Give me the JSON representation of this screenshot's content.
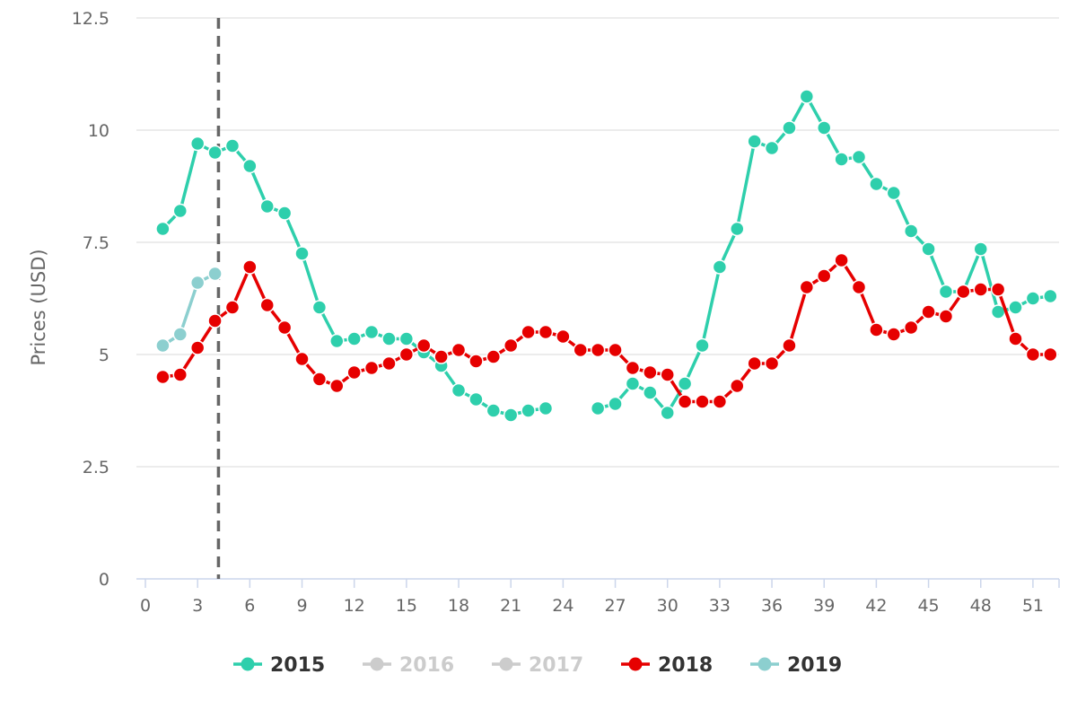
{
  "chart_data": {
    "type": "line",
    "xlabel": "",
    "ylabel": "Prices (USD)",
    "xlim": [
      0,
      52.5
    ],
    "ylim": [
      0,
      12.5
    ],
    "x_ticks": [
      0,
      3,
      6,
      9,
      12,
      15,
      18,
      21,
      24,
      27,
      30,
      33,
      36,
      39,
      42,
      45,
      48,
      51
    ],
    "y_ticks": [
      0,
      2.5,
      5,
      7.5,
      10,
      12.5
    ],
    "y_tick_labels": [
      "0",
      "2.5",
      "5",
      "7.5",
      "10",
      "12.5"
    ],
    "grid": true,
    "legend": "bottom-center",
    "reference_line_x": 4.2,
    "series": [
      {
        "name": "2015",
        "color": "#2ecfac",
        "visible": true,
        "x": [
          1,
          2,
          3,
          4,
          5,
          6,
          7,
          8,
          9,
          10,
          11,
          12,
          13,
          14,
          15,
          16,
          17,
          18,
          19,
          20,
          21,
          22,
          23,
          24,
          25,
          26,
          27,
          28,
          29,
          30,
          31,
          32,
          33,
          34,
          35,
          36,
          37,
          38,
          39,
          40,
          41,
          42,
          43,
          44,
          45,
          46,
          47,
          48,
          49,
          50,
          51,
          52
        ],
        "values": [
          7.8,
          8.2,
          9.7,
          9.5,
          9.65,
          9.2,
          8.3,
          8.15,
          7.25,
          6.05,
          5.3,
          5.35,
          5.5,
          5.35,
          5.35,
          5.05,
          4.75,
          4.2,
          4.0,
          3.75,
          3.65,
          3.75,
          3.8,
          null,
          null,
          3.8,
          3.9,
          4.35,
          4.15,
          3.7,
          4.35,
          5.2,
          6.95,
          7.8,
          9.75,
          9.6,
          10.05,
          10.75,
          10.05,
          9.35,
          9.4,
          8.8,
          8.6,
          7.75,
          7.35,
          6.4,
          6.4,
          7.35,
          5.95,
          6.05,
          6.25,
          6.3
        ]
      },
      {
        "name": "2016",
        "color": "#cccccc",
        "visible": false,
        "x": [],
        "values": []
      },
      {
        "name": "2017",
        "color": "#cccccc",
        "visible": false,
        "x": [],
        "values": []
      },
      {
        "name": "2018",
        "color": "#e60000",
        "visible": true,
        "x": [
          1,
          2,
          3,
          4,
          5,
          6,
          7,
          8,
          9,
          10,
          11,
          12,
          13,
          14,
          15,
          16,
          17,
          18,
          19,
          20,
          21,
          22,
          23,
          24,
          25,
          26,
          27,
          28,
          29,
          30,
          31,
          32,
          33,
          34,
          35,
          36,
          37,
          38,
          39,
          40,
          41,
          42,
          43,
          44,
          45,
          46,
          47,
          48,
          49,
          50,
          51,
          52
        ],
        "values": [
          4.5,
          4.55,
          5.15,
          5.75,
          6.05,
          6.95,
          6.1,
          5.6,
          4.9,
          4.45,
          4.3,
          4.6,
          4.7,
          4.8,
          5.0,
          5.2,
          4.95,
          5.1,
          4.85,
          4.95,
          5.2,
          5.5,
          5.5,
          5.4,
          5.1,
          5.1,
          5.1,
          4.7,
          4.6,
          4.55,
          3.95,
          3.95,
          3.95,
          4.3,
          4.8,
          4.8,
          5.2,
          6.5,
          6.75,
          7.1,
          6.5,
          5.55,
          5.45,
          5.6,
          5.95,
          5.85,
          6.4,
          6.45,
          6.45,
          5.35,
          5.0,
          5.0
        ]
      },
      {
        "name": "2019",
        "color": "#8ccfcf",
        "visible": true,
        "x": [
          1,
          2,
          3,
          4
        ],
        "values": [
          5.2,
          5.45,
          6.6,
          6.8
        ]
      }
    ]
  }
}
